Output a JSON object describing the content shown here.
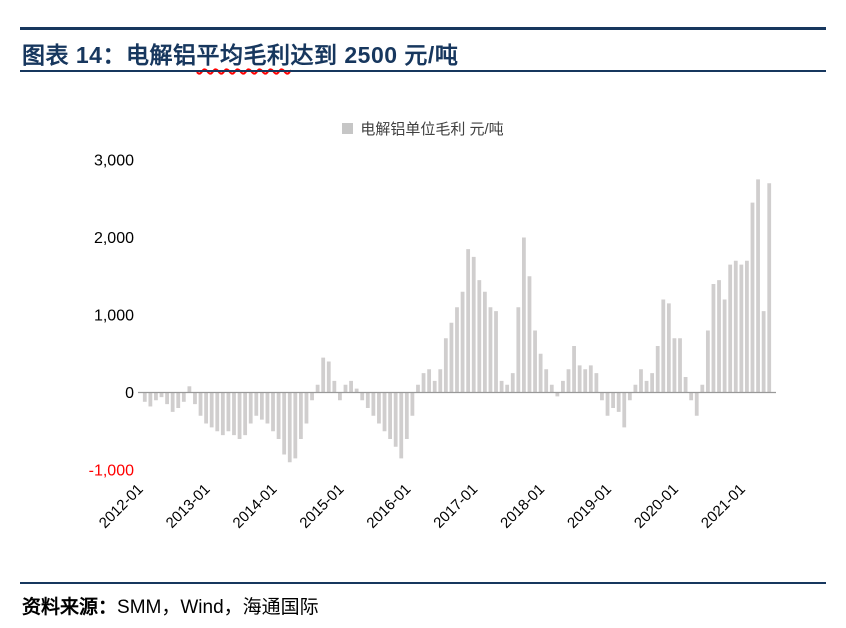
{
  "header": {
    "title_prefix": "图表 14：电解铝",
    "title_wavy": "平均毛利",
    "title_suffix": "达到 2500 元/吨"
  },
  "legend": {
    "label": "电解铝单位毛利 元/吨",
    "marker_color": "#C6C6C6"
  },
  "footer": {
    "source_label": "资料来源：",
    "source_text": "SMM，Wind，海通国际"
  },
  "colors": {
    "accent_navy": "#17375E",
    "bar_fill": "#D0CECE",
    "axis_line": "#999999",
    "tick_text": "#000000",
    "negative_tick_text": "#FF0000",
    "legend_text": "#404040"
  },
  "chart_data": {
    "type": "bar",
    "title": "电解铝单位毛利 元/吨",
    "x_start": "2012-01",
    "frequency": "monthly",
    "ylim": [
      -1000,
      3000
    ],
    "y_ticks": [
      3000,
      2000,
      1000,
      0,
      -1000
    ],
    "y_tick_labels": [
      "3,000",
      "2,000",
      "1,000",
      "0",
      "-1,000"
    ],
    "x_tick_labels": [
      "2012-01",
      "2013-01",
      "2014-01",
      "2015-01",
      "2016-01",
      "2017-01",
      "2018-01",
      "2019-01",
      "2020-01",
      "2021-01"
    ],
    "x_tick_indices": [
      0,
      12,
      24,
      36,
      48,
      60,
      72,
      84,
      96,
      108
    ],
    "grid": false,
    "legend_position": "top-center",
    "values": [
      -120,
      -180,
      -100,
      -60,
      -150,
      -250,
      -200,
      -120,
      80,
      -150,
      -300,
      -400,
      -450,
      -500,
      -550,
      -500,
      -550,
      -600,
      -550,
      -400,
      -300,
      -350,
      -400,
      -500,
      -600,
      -800,
      -900,
      -850,
      -600,
      -400,
      -100,
      100,
      450,
      400,
      150,
      -100,
      100,
      150,
      50,
      -100,
      -200,
      -300,
      -400,
      -500,
      -600,
      -700,
      -850,
      -600,
      -300,
      100,
      250,
      300,
      150,
      300,
      700,
      900,
      1100,
      1300,
      1850,
      1750,
      1450,
      1300,
      1100,
      1050,
      150,
      100,
      250,
      1100,
      2000,
      1500,
      800,
      500,
      300,
      100,
      -50,
      150,
      300,
      600,
      350,
      300,
      350,
      250,
      -100,
      -300,
      -200,
      -250,
      -450,
      -100,
      100,
      300,
      150,
      250,
      600,
      1200,
      1150,
      700,
      700,
      200,
      -100,
      -300,
      100,
      800,
      1400,
      1450,
      1200,
      1650,
      1700,
      1650,
      1700,
      2450,
      2750,
      1050,
      2700
    ]
  }
}
